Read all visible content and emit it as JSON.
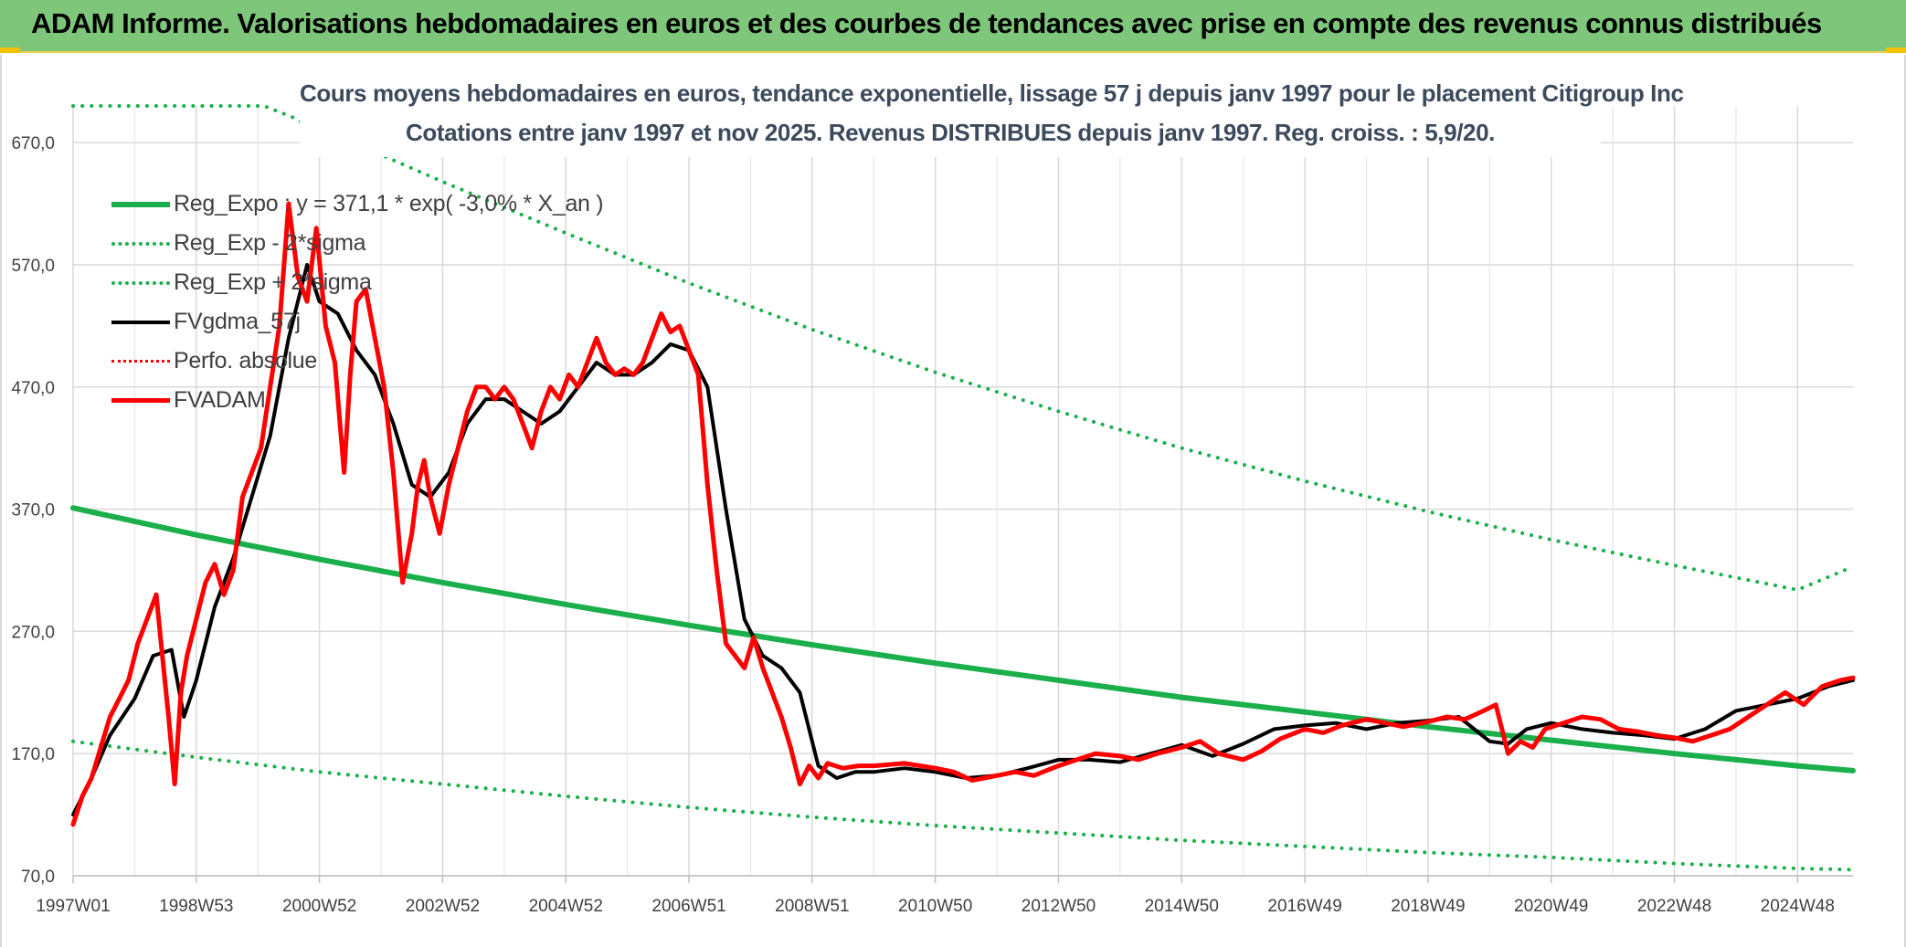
{
  "header": {
    "title": "ADAM Informe. Valorisations hebdomadaires en euros et des courbes de tendances avec prise en compte des revenus connus distribués"
  },
  "colors": {
    "header_bg": "#7dc67a",
    "reg_expo": "#1aaf4b",
    "series_red": "#ff0000",
    "series_black": "#000000"
  },
  "chart_data": {
    "type": "line",
    "title_line1": "Cours moyens hebdomadaires en euros, tendance exponentielle, lissage 57 j depuis janv 1997 pour le placement Citigroup Inc",
    "title_line2": "Cotations entre janv 1997 et nov 2025. Revenus DISTRIBUES depuis janv 1997. Reg. croiss. : 5,9/20.",
    "xlabel": "",
    "ylabel": "",
    "xlim": [
      1997.0,
      2025.9
    ],
    "ylim": [
      70,
      670
    ],
    "y_ticks": [
      "670,0",
      "570,0",
      "470,0",
      "370,0",
      "270,0",
      "170,0",
      "70,0"
    ],
    "y_tick_values": [
      670,
      570,
      470,
      370,
      270,
      170,
      70
    ],
    "x_ticks": [
      "1997W01",
      "1998W53",
      "2000W52",
      "2002W52",
      "2004W52",
      "2006W51",
      "2008W51",
      "2010W50",
      "2012W50",
      "2014W50",
      "2016W49",
      "2018W49",
      "2020W49",
      "2022W48",
      "2024W48"
    ],
    "x_tick_values": [
      1997.0,
      1999.0,
      2001.0,
      2003.0,
      2005.0,
      2007.0,
      2009.0,
      2011.0,
      2013.0,
      2015.0,
      2017.0,
      2019.0,
      2021.0,
      2023.0,
      2025.0
    ],
    "legend": [
      {
        "name": "Reg_Expo : y = 371,1 * exp( -3,0% * X_an )",
        "color": "#1aaf4b",
        "style": "solid",
        "width": 6
      },
      {
        "name": "Reg_Exp - 2*sigma",
        "color": "#1aaf4b",
        "style": "dotted",
        "width": 4
      },
      {
        "name": "Reg_Exp + 2*sigma",
        "color": "#1aaf4b",
        "style": "dotted",
        "width": 4
      },
      {
        "name": "FVgdma_57j",
        "color": "#000000",
        "style": "solid",
        "width": 4
      },
      {
        "name": "Perfo. absolue",
        "color": "#ff0000",
        "style": "dotted",
        "width": 3
      },
      {
        "name": "FVADAM",
        "color": "#ff0000",
        "style": "solid",
        "width": 5
      }
    ],
    "series": [
      {
        "name": "Reg_Expo : y = 371,1 * exp( -3,0% * X_an )",
        "x": [
          1997.0,
          1999.0,
          2001.0,
          2003.0,
          2005.0,
          2007.0,
          2009.0,
          2011.0,
          2013.0,
          2015.0,
          2017.0,
          2019.0,
          2021.0,
          2023.0,
          2025.0,
          2025.9
        ],
        "y": [
          371,
          349,
          329,
          310,
          292,
          275,
          259,
          244,
          230,
          216,
          204,
          192,
          181,
          170,
          160,
          156
        ]
      },
      {
        "name": "Reg_Exp - 2*sigma",
        "x": [
          1997.0,
          1999.0,
          2001.0,
          2003.0,
          2005.0,
          2007.0,
          2009.0,
          2011.0,
          2013.0,
          2015.0,
          2017.0,
          2019.0,
          2021.0,
          2023.0,
          2025.0,
          2025.9
        ],
        "y": [
          180,
          167,
          155,
          145,
          135,
          126,
          118,
          111,
          105,
          99,
          94,
          89,
          85,
          80,
          76,
          75
        ]
      },
      {
        "name": "Reg_Exp + 2*sigma",
        "x": [
          1997.0,
          2000.1,
          2000.6,
          2001.0,
          2002.0,
          2003.0,
          2005.0,
          2007.0,
          2009.0,
          2011.0,
          2013.0,
          2015.0,
          2017.0,
          2019.0,
          2021.0,
          2023.0,
          2025.0,
          2025.9
        ],
        "y": [
          700,
          700,
          690,
          678,
          660,
          638,
          596,
          555,
          517,
          482,
          450,
          420,
          393,
          368,
          345,
          324,
          304,
          323
        ]
      },
      {
        "name": "FVgdma_57j",
        "x": [
          1997.0,
          1997.3,
          1997.6,
          1998.0,
          1998.3,
          1998.6,
          1998.8,
          1999.0,
          1999.3,
          1999.6,
          1999.9,
          2000.2,
          2000.5,
          2000.8,
          2001.0,
          2001.3,
          2001.6,
          2001.9,
          2002.2,
          2002.5,
          2002.8,
          2003.1,
          2003.4,
          2003.7,
          2004.0,
          2004.3,
          2004.6,
          2004.9,
          2005.2,
          2005.5,
          2005.8,
          2006.1,
          2006.4,
          2006.7,
          2007.0,
          2007.3,
          2007.6,
          2007.9,
          2008.2,
          2008.5,
          2008.8,
          2009.1,
          2009.4,
          2009.7,
          2010.0,
          2010.5,
          2011.0,
          2011.5,
          2012.0,
          2012.5,
          2013.0,
          2013.5,
          2014.0,
          2014.5,
          2015.0,
          2015.5,
          2016.0,
          2016.5,
          2017.0,
          2017.5,
          2018.0,
          2018.5,
          2019.0,
          2019.5,
          2020.0,
          2020.3,
          2020.6,
          2021.0,
          2021.5,
          2022.0,
          2022.5,
          2023.0,
          2023.5,
          2024.0,
          2024.5,
          2025.0,
          2025.5,
          2025.9
        ],
        "y": [
          120,
          150,
          185,
          215,
          250,
          255,
          200,
          230,
          290,
          330,
          380,
          430,
          510,
          570,
          540,
          530,
          500,
          480,
          440,
          390,
          380,
          400,
          440,
          460,
          460,
          450,
          440,
          450,
          470,
          490,
          480,
          480,
          490,
          505,
          500,
          470,
          370,
          280,
          250,
          240,
          220,
          160,
          150,
          155,
          155,
          158,
          155,
          150,
          152,
          158,
          165,
          165,
          163,
          170,
          177,
          168,
          178,
          190,
          193,
          195,
          190,
          195,
          197,
          200,
          180,
          178,
          190,
          195,
          190,
          187,
          185,
          182,
          190,
          205,
          210,
          215,
          225,
          230
        ]
      },
      {
        "name": "FVADAM",
        "x": [
          1997.0,
          1997.15,
          1997.3,
          1997.45,
          1997.6,
          1997.75,
          1997.9,
          1998.05,
          1998.2,
          1998.35,
          1998.45,
          1998.55,
          1998.65,
          1998.75,
          1998.85,
          1999.0,
          1999.15,
          1999.3,
          1999.45,
          1999.6,
          1999.75,
          1999.9,
          2000.05,
          2000.2,
          2000.35,
          2000.5,
          2000.65,
          2000.8,
          2000.95,
          2001.1,
          2001.25,
          2001.4,
          2001.5,
          2001.6,
          2001.75,
          2001.9,
          2002.05,
          2002.2,
          2002.35,
          2002.5,
          2002.6,
          2002.7,
          2002.8,
          2002.95,
          2003.1,
          2003.25,
          2003.4,
          2003.55,
          2003.7,
          2003.85,
          2004.0,
          2004.15,
          2004.3,
          2004.45,
          2004.6,
          2004.75,
          2004.9,
          2005.05,
          2005.2,
          2005.35,
          2005.5,
          2005.65,
          2005.8,
          2005.95,
          2006.1,
          2006.25,
          2006.4,
          2006.55,
          2006.7,
          2006.85,
          2007.0,
          2007.15,
          2007.3,
          2007.45,
          2007.6,
          2007.75,
          2007.9,
          2008.05,
          2008.2,
          2008.35,
          2008.5,
          2008.65,
          2008.8,
          2008.95,
          2009.1,
          2009.25,
          2009.5,
          2009.75,
          2010.0,
          2010.5,
          2011.0,
          2011.3,
          2011.6,
          2012.0,
          2012.3,
          2012.6,
          2013.0,
          2013.3,
          2013.6,
          2014.0,
          2014.3,
          2014.6,
          2015.0,
          2015.3,
          2015.6,
          2016.0,
          2016.3,
          2016.6,
          2017.0,
          2017.3,
          2017.6,
          2018.0,
          2018.3,
          2018.6,
          2019.0,
          2019.3,
          2019.6,
          2019.9,
          2020.1,
          2020.3,
          2020.5,
          2020.7,
          2020.9,
          2021.2,
          2021.5,
          2021.8,
          2022.1,
          2022.4,
          2022.7,
          2023.0,
          2023.3,
          2023.6,
          2023.9,
          2024.2,
          2024.5,
          2024.8,
          2025.1,
          2025.4,
          2025.7,
          2025.9
        ],
        "y": [
          112,
          135,
          150,
          175,
          200,
          215,
          230,
          260,
          280,
          300,
          250,
          200,
          145,
          220,
          250,
          280,
          310,
          325,
          300,
          320,
          380,
          400,
          420,
          470,
          520,
          620,
          560,
          540,
          600,
          520,
          490,
          400,
          480,
          540,
          550,
          510,
          470,
          400,
          310,
          350,
          390,
          410,
          380,
          350,
          390,
          420,
          450,
          470,
          470,
          460,
          470,
          460,
          440,
          420,
          450,
          470,
          460,
          480,
          470,
          490,
          510,
          490,
          480,
          485,
          480,
          490,
          510,
          530,
          515,
          520,
          500,
          480,
          390,
          320,
          260,
          250,
          240,
          265,
          240,
          220,
          200,
          175,
          145,
          160,
          150,
          162,
          158,
          160,
          160,
          162,
          158,
          155,
          148,
          152,
          155,
          152,
          160,
          165,
          170,
          168,
          165,
          170,
          175,
          180,
          170,
          165,
          172,
          182,
          190,
          187,
          193,
          198,
          195,
          192,
          196,
          200,
          198,
          205,
          210,
          170,
          180,
          175,
          190,
          195,
          200,
          198,
          190,
          188,
          185,
          183,
          180,
          185,
          190,
          200,
          210,
          220,
          210,
          225,
          230,
          232
        ]
      }
    ]
  }
}
